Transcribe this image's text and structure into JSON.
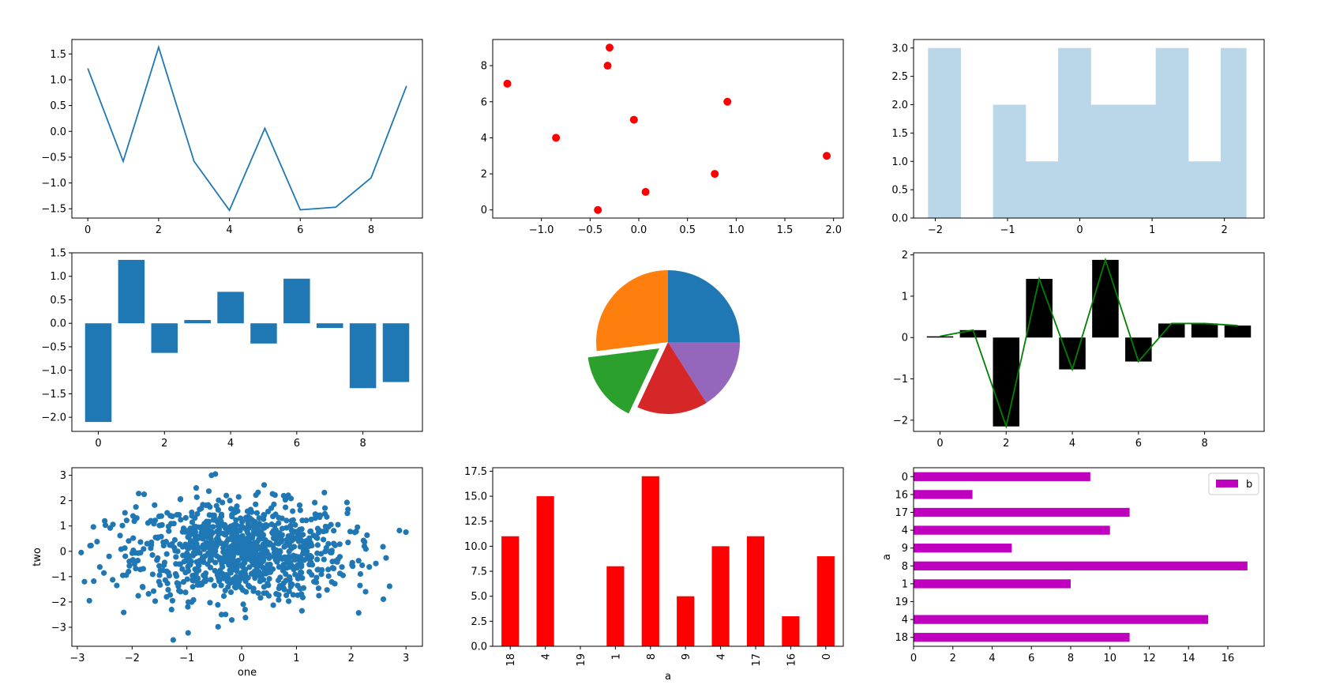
{
  "colors": {
    "blue": "#1f77b4",
    "orange": "#ff7f0e",
    "green": "#2ca02c",
    "red": "#d62728",
    "purple": "#9467bd",
    "hist": "#bad6e9",
    "scarlet": "#ff0000",
    "black": "#000000",
    "darkgreen": "#008000",
    "magenta": "#bf00bf"
  },
  "chart_data": [
    {
      "type": "line",
      "x": [
        0,
        1,
        2,
        3,
        4,
        5,
        6,
        7,
        8,
        9
      ],
      "y": [
        1.22,
        -0.58,
        1.63,
        -0.58,
        -1.53,
        0.06,
        -1.52,
        -1.47,
        -0.9,
        0.88
      ],
      "xlim": [
        -0.45,
        9.45
      ],
      "ylim": [
        -1.68,
        1.78
      ],
      "xticks": [
        0,
        2,
        4,
        6,
        8
      ],
      "xtick_labels": [
        "0",
        "2",
        "4",
        "6",
        "8"
      ],
      "yticks": [
        -1.5,
        -1.0,
        -0.5,
        0,
        0.5,
        1.0,
        1.5
      ],
      "ytick_labels": [
        "−1.5",
        "−1.0",
        "−0.5",
        "0.0",
        "0.5",
        "1.0",
        "1.5"
      ]
    },
    {
      "type": "scatter",
      "x": [
        -1.35,
        -0.85,
        -0.42,
        -0.3,
        -0.32,
        -0.05,
        0.07,
        0.78,
        0.91,
        1.93
      ],
      "y": [
        7,
        4,
        0,
        9,
        8,
        5,
        1,
        2,
        6,
        3
      ],
      "xlim": [
        -1.5,
        2.1
      ],
      "ylim": [
        -0.45,
        9.45
      ],
      "xticks": [
        -1.0,
        -0.5,
        0,
        0.5,
        1.0,
        1.5,
        2.0
      ],
      "xtick_labels": [
        "−1.0",
        "−0.5",
        "0.0",
        "0.5",
        "1.0",
        "1.5",
        "2.0"
      ],
      "yticks": [
        0,
        2,
        4,
        6,
        8
      ],
      "ytick_labels": [
        "0",
        "2",
        "4",
        "6",
        "8"
      ]
    },
    {
      "type": "bar",
      "subtype": "histogram",
      "bin_edges": [
        -2.1,
        -1.65,
        -1.2,
        -0.75,
        -0.3,
        0.15,
        0.6,
        1.05,
        1.5,
        1.95,
        2.3
      ],
      "values": [
        3,
        0,
        2,
        1,
        3,
        2,
        2,
        3,
        1,
        3
      ],
      "xlim": [
        -2.3,
        2.55
      ],
      "ylim": [
        0,
        3.15
      ],
      "xticks": [
        -2,
        -1,
        0,
        1,
        2
      ],
      "xtick_labels": [
        "−2",
        "−1",
        "0",
        "1",
        "2"
      ],
      "yticks": [
        0,
        0.5,
        1.0,
        1.5,
        2.0,
        2.5,
        3.0
      ],
      "ytick_labels": [
        "0.0",
        "0.5",
        "1.0",
        "1.5",
        "2.0",
        "2.5",
        "3.0"
      ]
    },
    {
      "type": "bar",
      "x": [
        0,
        1,
        2,
        3,
        4,
        5,
        6,
        7,
        8,
        9
      ],
      "values": [
        -2.1,
        1.35,
        -0.63,
        0.07,
        0.67,
        -0.43,
        0.95,
        -0.1,
        -1.38,
        -1.25
      ],
      "xlim": [
        -0.8,
        9.8
      ],
      "ylim": [
        -2.3,
        1.5
      ],
      "xticks": [
        0,
        2,
        4,
        6,
        8
      ],
      "xtick_labels": [
        "0",
        "2",
        "4",
        "6",
        "8"
      ],
      "yticks": [
        -2.0,
        -1.5,
        -1.0,
        -0.5,
        0,
        0.5,
        1.0,
        1.5
      ],
      "ytick_labels": [
        "−2.0",
        "−1.5",
        "−1.0",
        "−0.5",
        "0.0",
        "0.5",
        "1.0",
        "1.5"
      ]
    },
    {
      "type": "pie",
      "values": [
        25,
        27,
        16,
        16,
        16
      ],
      "explode": [
        0,
        0,
        0.15,
        0,
        0
      ]
    },
    {
      "type": "bar",
      "subtype": "bar with line overlay",
      "x": [
        0,
        1,
        2,
        3,
        4,
        5,
        6,
        7,
        8,
        9
      ],
      "values": [
        0.03,
        0.18,
        -2.15,
        1.42,
        -0.77,
        1.88,
        -0.58,
        0.34,
        0.34,
        0.29
      ],
      "xlim": [
        -0.8,
        9.8
      ],
      "ylim": [
        -2.27,
        2.05
      ],
      "xticks": [
        0,
        2,
        4,
        6,
        8
      ],
      "xtick_labels": [
        "0",
        "2",
        "4",
        "6",
        "8"
      ],
      "yticks": [
        -2,
        -1,
        0,
        1,
        2
      ],
      "ytick_labels": [
        "−2",
        "−1",
        "0",
        "1",
        "2"
      ]
    },
    {
      "type": "scatter",
      "xlabel": "one",
      "ylabel": "two",
      "xlim": [
        -3.1,
        3.3
      ],
      "ylim": [
        -3.75,
        3.3
      ],
      "xticks": [
        -3,
        -2,
        -1,
        0,
        1,
        2,
        3
      ],
      "xtick_labels": [
        "−3",
        "−2",
        "−1",
        "0",
        "1",
        "2",
        "3"
      ],
      "yticks": [
        -3,
        -2,
        -1,
        0,
        1,
        2,
        3
      ],
      "ytick_labels": [
        "−3",
        "−2",
        "−1",
        "0",
        "1",
        "2",
        "3"
      ],
      "x": [
        -2.93,
        -2.87,
        -2.78,
        -2.7,
        -2.64,
        -2.59,
        -2.5,
        -2.42,
        -2.4,
        -2.35,
        -2.28,
        -2.22,
        -2.17,
        -2.13,
        -2.05,
        -1.98,
        -1.93,
        -1.85,
        -1.78,
        -1.7,
        -1.66,
        -1.58,
        -1.51,
        -1.47,
        -1.42,
        -1.36,
        -1.28,
        -1.22,
        -1.19,
        -1.12,
        -1.02,
        -0.98,
        -0.95,
        -0.88,
        -0.83,
        -0.78,
        -0.71,
        -0.66,
        -0.58,
        -0.52,
        -0.48,
        -0.43,
        -0.39,
        -0.3,
        -0.28,
        -0.21,
        -0.13,
        -0.05,
        0.01,
        0.07,
        0.15,
        0.21,
        0.28,
        0.35,
        0.41,
        0.48,
        0.52,
        0.57,
        0.63,
        0.69,
        0.74,
        0.82,
        0.88,
        0.95,
        1.01,
        1.07,
        1.13,
        1.18,
        1.25,
        1.32,
        1.38,
        1.45,
        1.51,
        1.58,
        1.63,
        1.7,
        1.79,
        1.85,
        1.93,
        2.02,
        2.09,
        2.16,
        2.24,
        2.33,
        2.45,
        2.58,
        2.7,
        2.88,
        -1.88,
        -0.55,
        0.45,
        1.68,
        -1.25,
        0.35,
        -0.45,
        1.1,
        -2.1,
        2.2
      ],
      "y": [
        -0.05,
        -1.2,
        -1.95,
        -1.18,
        0.38,
        -0.62,
        1.2,
        -0.2,
        0.92,
        1.06,
        -1.35,
        0.62,
        -0.95,
        1.52,
        -0.4,
        0.52,
        1.75,
        -0.72,
        2.25,
        -1.68,
        0.12,
        1.22,
        -1.2,
        0.58,
        -0.55,
        1.52,
        -2.3,
        0.45,
        -0.98,
        2.05,
        1.32,
        -0.62,
        0.28,
        -1.92,
        2.5,
        0.95,
        -0.4,
        -1.18,
        1.75,
        -0.08,
        3.05,
        -2.98,
        0.72,
        -1.55,
        2.2,
        -0.18,
        0.92,
        -1.35,
        0.38,
        -2.62,
        1.55,
        -0.52,
        0.1,
        -1.05,
        2.62,
        0.35,
        -0.78,
        1.38,
        -1.68,
        0.72,
        -0.3,
        2.12,
        -1.12,
        0.48,
        -0.65,
        1.62,
        -1.45,
        0.25,
        0.78,
        -1.2,
        0.52,
        -0.1,
        2.32,
        -0.72,
        1.05,
        -1.28,
        0.28,
        -0.95,
        1.5,
        -0.45,
        0.78,
        -1.35,
        0.2,
        -0.62,
        -0.48,
        0.18,
        -1.38,
        0.82,
        2.28,
        3.0,
        -1.65,
        -0.68,
        -3.5,
        0.5,
        1.18,
        -2.35,
        1.22,
        -0.55
      ]
    },
    {
      "type": "bar",
      "categories": [
        "18",
        "4",
        "19",
        "1",
        "8",
        "9",
        "4",
        "17",
        "16",
        "0"
      ],
      "values": [
        11,
        15,
        0,
        8,
        17,
        5,
        10,
        11,
        3,
        9
      ],
      "xlabel": "a",
      "ylim": [
        0,
        17.85
      ],
      "yticks": [
        0,
        2.5,
        5,
        7.5,
        10,
        12.5,
        15,
        17.5
      ],
      "ytick_labels": [
        "0.0",
        "2.5",
        "5.0",
        "7.5",
        "10.0",
        "12.5",
        "15.0",
        "17.5"
      ]
    },
    {
      "type": "bar",
      "orientation": "horizontal",
      "categories": [
        "0",
        "16",
        "17",
        "4",
        "9",
        "8",
        "1",
        "19",
        "4",
        "18"
      ],
      "values": [
        9,
        3,
        11,
        10,
        5,
        17,
        8,
        0,
        15,
        11
      ],
      "ylabel": "a",
      "legend": [
        "b"
      ],
      "legend_position": "upper-right",
      "xlim": [
        0,
        17.85
      ],
      "xticks": [
        0,
        2,
        4,
        6,
        8,
        10,
        12,
        14,
        16
      ],
      "xtick_labels": [
        "0",
        "2",
        "4",
        "6",
        "8",
        "10",
        "12",
        "14",
        "16"
      ]
    }
  ]
}
